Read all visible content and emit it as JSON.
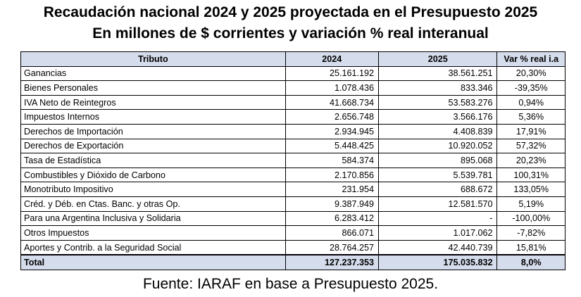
{
  "title_line1": "Recaudación nacional 2024 y 2025 proyectada en el Presupuesto 2025",
  "title_line2": "En millones de $ corrientes y variación % real interanual",
  "headers": [
    "Tributo",
    "2024",
    "2025",
    "Var % real i.a"
  ],
  "rows": [
    [
      "Ganancias",
      "25.161.192",
      "38.561.251",
      "20,30%"
    ],
    [
      "Bienes Personales",
      "1.078.436",
      "833.346",
      "-39,35%"
    ],
    [
      "IVA Neto de Reintegros",
      "41.668.734",
      "53.583.276",
      "0,94%"
    ],
    [
      "Impuestos Internos",
      "2.656.748",
      "3.566.176",
      "5,36%"
    ],
    [
      "Derechos de Importación",
      "2.934.945",
      "4.408.839",
      "17,91%"
    ],
    [
      "Derechos de Exportación",
      "5.448.425",
      "10.920.052",
      "57,32%"
    ],
    [
      "Tasa de Estadística",
      "584.374",
      "895.068",
      "20,23%"
    ],
    [
      "Combustibles y Dióxido de Carbono",
      "2.170.856",
      "5.539.781",
      "100,31%"
    ],
    [
      "Monotributo Impositivo",
      "231.954",
      "688.672",
      "133,05%"
    ],
    [
      "Créd. y Déb. en Ctas. Banc. y otras Op.",
      "9.387.949",
      "12.581.570",
      "5,19%"
    ],
    [
      "Para una Argentina Inclusiva y Solidaria",
      "6.283.412",
      "-",
      "-100,00%"
    ],
    [
      "Otros Impuestos",
      "866.071",
      "1.017.062",
      "-7,82%"
    ],
    [
      "Aportes y Contrib. a la Seguridad Social",
      "28.764.257",
      "42.440.739",
      "15,81%"
    ]
  ],
  "total": [
    "Total",
    "127.237.353",
    "175.035.832",
    "8,0%"
  ],
  "source": "Fuente: IARAF en base a Presupuesto 2025."
}
